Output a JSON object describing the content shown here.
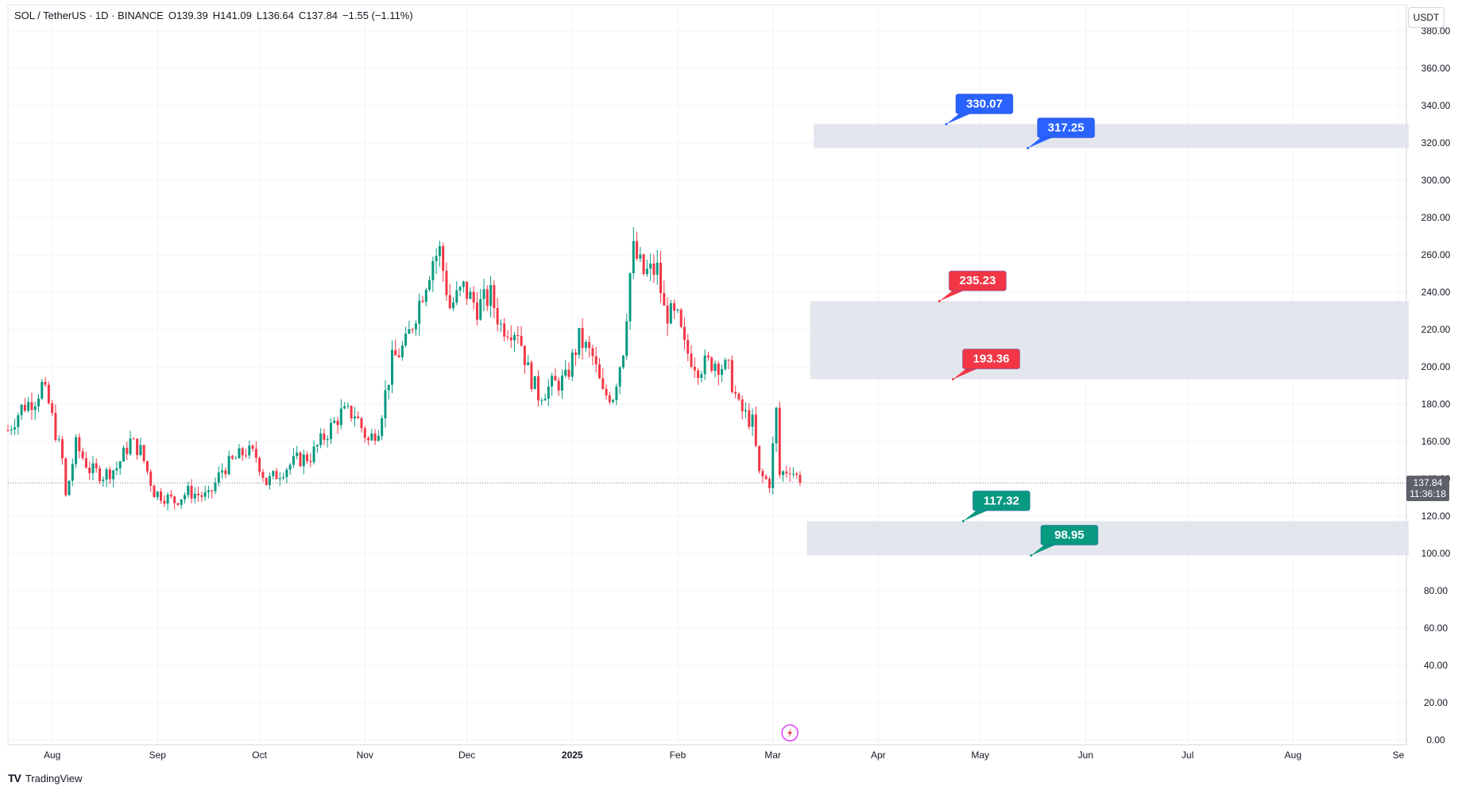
{
  "legend": {
    "symbol": "SOL / TetherUS · 1D · BINANCE",
    "open": "O139.39",
    "high": "H141.09",
    "low": "L136.64",
    "close": "C137.84",
    "change": "−1.55 (−1.11%)"
  },
  "currency_button": "USDT",
  "brand": {
    "logo": "TV",
    "name": "TradingView"
  },
  "last_price": {
    "value": "137.84",
    "countdown": "11:36:18"
  },
  "colors": {
    "up": "#089981",
    "down": "#f23645",
    "blue": "#2962ff",
    "zone": "#e0e3eb"
  },
  "chart_data": {
    "type": "candlestick",
    "y_axis": {
      "min": 0,
      "max": 380,
      "step": 20,
      "decimals": 2
    },
    "x_axis": {
      "start": "2024-07-19",
      "end": "2025-09-01",
      "ticks": [
        {
          "label": "Aug",
          "date": "2024-08-01"
        },
        {
          "label": "Sep",
          "date": "2024-09-01"
        },
        {
          "label": "Oct",
          "date": "2024-10-01"
        },
        {
          "label": "Nov",
          "date": "2024-11-01"
        },
        {
          "label": "Dec",
          "date": "2024-12-01"
        },
        {
          "label": "2025",
          "date": "2025-01-01",
          "bold": true
        },
        {
          "label": "Feb",
          "date": "2025-02-01"
        },
        {
          "label": "Mar",
          "date": "2025-03-01"
        },
        {
          "label": "Apr",
          "date": "2025-04-01"
        },
        {
          "label": "May",
          "date": "2025-05-01"
        },
        {
          "label": "Jun",
          "date": "2025-06-01"
        },
        {
          "label": "Jul",
          "date": "2025-07-01"
        },
        {
          "label": "Aug",
          "date": "2025-08-01"
        },
        {
          "label": "Se",
          "date": "2025-09-01"
        }
      ]
    },
    "price_path": [
      [
        "2024-07-19",
        166
      ],
      [
        "2024-07-23",
        178
      ],
      [
        "2024-07-27",
        183
      ],
      [
        "2024-07-29",
        190
      ],
      [
        "2024-07-31",
        180
      ],
      [
        "2024-08-04",
        150
      ],
      [
        "2024-08-05",
        130
      ],
      [
        "2024-08-08",
        158
      ],
      [
        "2024-08-12",
        145
      ],
      [
        "2024-08-16",
        142
      ],
      [
        "2024-08-20",
        146
      ],
      [
        "2024-08-24",
        160
      ],
      [
        "2024-08-27",
        155
      ],
      [
        "2024-08-31",
        133
      ],
      [
        "2024-09-06",
        128
      ],
      [
        "2024-09-10",
        133
      ],
      [
        "2024-09-16",
        130
      ],
      [
        "2024-09-20",
        145
      ],
      [
        "2024-09-27",
        155
      ],
      [
        "2024-09-30",
        152
      ],
      [
        "2024-10-03",
        138
      ],
      [
        "2024-10-08",
        145
      ],
      [
        "2024-10-12",
        150
      ],
      [
        "2024-10-16",
        152
      ],
      [
        "2024-10-21",
        165
      ],
      [
        "2024-10-25",
        175
      ],
      [
        "2024-10-29",
        175
      ],
      [
        "2024-11-02",
        160
      ],
      [
        "2024-11-05",
        168
      ],
      [
        "2024-11-09",
        203
      ],
      [
        "2024-11-13",
        212
      ],
      [
        "2024-11-17",
        235
      ],
      [
        "2024-11-21",
        258
      ],
      [
        "2024-11-23",
        262
      ],
      [
        "2024-11-26",
        232
      ],
      [
        "2024-11-30",
        242
      ],
      [
        "2024-12-04",
        232
      ],
      [
        "2024-12-08",
        238
      ],
      [
        "2024-12-11",
        222
      ],
      [
        "2024-12-16",
        220
      ],
      [
        "2024-12-19",
        198
      ],
      [
        "2024-12-22",
        185
      ],
      [
        "2024-12-26",
        190
      ],
      [
        "2024-12-30",
        193
      ],
      [
        "2025-01-03",
        215
      ],
      [
        "2025-01-07",
        205
      ],
      [
        "2025-01-10",
        185
      ],
      [
        "2025-01-13",
        185
      ],
      [
        "2025-01-16",
        210
      ],
      [
        "2025-01-18",
        250
      ],
      [
        "2025-01-19",
        262
      ],
      [
        "2025-01-22",
        250
      ],
      [
        "2025-01-26",
        252
      ],
      [
        "2025-01-28",
        230
      ],
      [
        "2025-02-01",
        225
      ],
      [
        "2025-02-03",
        210
      ],
      [
        "2025-02-07",
        200
      ],
      [
        "2025-02-12",
        203
      ],
      [
        "2025-02-16",
        198
      ],
      [
        "2025-02-19",
        178
      ],
      [
        "2025-02-23",
        170
      ],
      [
        "2025-02-25",
        142
      ],
      [
        "2025-02-28",
        138
      ],
      [
        "2025-03-02",
        176
      ],
      [
        "2025-03-03",
        142
      ],
      [
        "2025-03-06",
        146
      ],
      [
        "2025-03-08",
        141
      ],
      [
        "2025-03-09",
        137.84
      ]
    ],
    "last_close": 137.84,
    "zones": [
      {
        "name": "upper",
        "top": 330.07,
        "bottom": 317.25,
        "start": "2025-03-13",
        "end": "2025-09-04"
      },
      {
        "name": "middle",
        "top": 235.23,
        "bottom": 193.36,
        "start": "2025-03-12",
        "end": "2025-09-04"
      },
      {
        "name": "lower",
        "top": 117.32,
        "bottom": 98.95,
        "start": "2025-03-11",
        "end": "2025-09-04"
      }
    ],
    "labels": [
      {
        "text": "330.07",
        "price": 330.07,
        "date": "2025-04-21",
        "color": "blue"
      },
      {
        "text": "317.25",
        "price": 317.25,
        "date": "2025-05-15",
        "color": "blue"
      },
      {
        "text": "235.23",
        "price": 235.23,
        "date": "2025-04-19",
        "color": "down"
      },
      {
        "text": "193.36",
        "price": 193.36,
        "date": "2025-04-23",
        "color": "down"
      },
      {
        "text": "117.32",
        "price": 117.32,
        "date": "2025-04-26",
        "color": "up"
      },
      {
        "text": "98.95",
        "price": 98.95,
        "date": "2025-05-16",
        "color": "up"
      }
    ]
  }
}
